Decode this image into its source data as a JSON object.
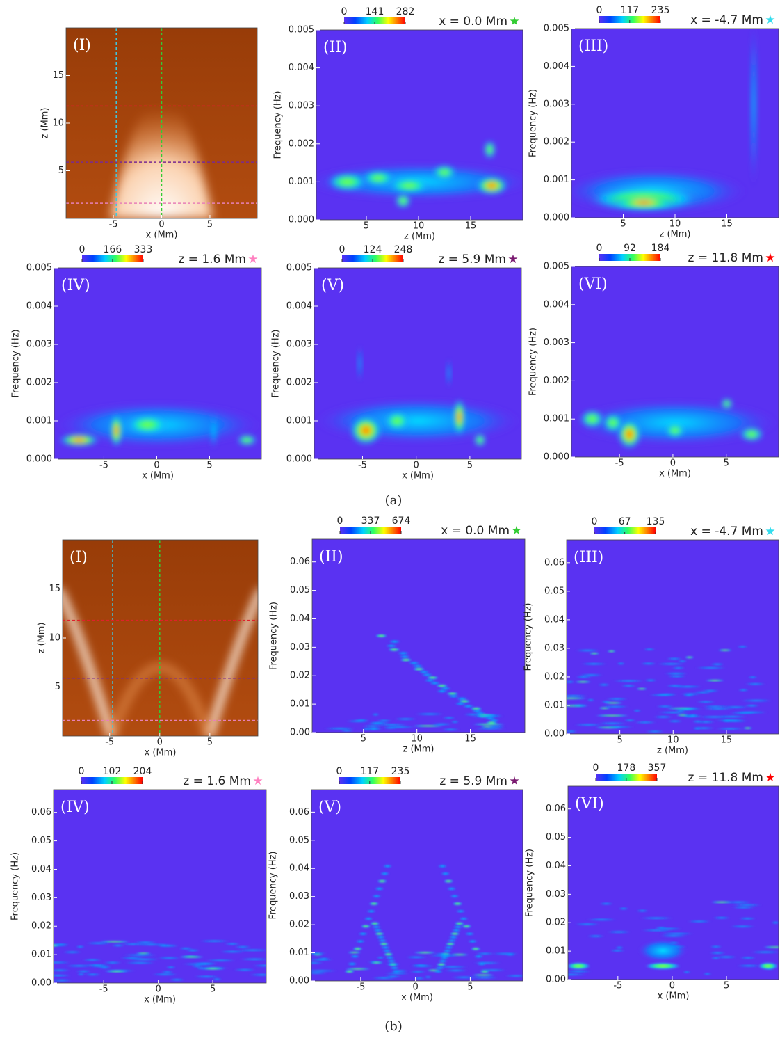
{
  "captions": [
    "(a)",
    "(b)"
  ],
  "chart_data": [
    {
      "type": "image",
      "panel": "(I)",
      "xlabel": "x (Mm)",
      "ylabel": "z (Mm)",
      "xlim": [
        -9.9,
        9.9
      ],
      "ylim": [
        0,
        20
      ],
      "xticks": [
        -5,
        0,
        5
      ],
      "yticks": [
        5,
        10,
        15
      ],
      "vlines": [
        {
          "value": -4.7,
          "color": "#3ec8e0"
        },
        {
          "value": 0,
          "color": "#33cc33"
        }
      ],
      "hlines": [
        {
          "value": 11.8,
          "color": "#e0202a"
        },
        {
          "value": 5.9,
          "color": "#7a2a90"
        },
        {
          "value": 1.6,
          "color": "#e880b8"
        }
      ]
    },
    {
      "type": "heatmap",
      "panel": "(II)",
      "title": "x = 0.0 Mm",
      "marker": "★",
      "marker_color": "#33cc33",
      "xlabel": "z (Mm)",
      "ylabel": "Frequency (Hz)",
      "xlim": [
        0.2,
        20
      ],
      "ylim": [
        0,
        0.005
      ],
      "xticks": [
        5,
        10,
        15
      ],
      "yticks": [
        {
          "value": 0,
          "label": "0.000"
        },
        {
          "value": 0.001,
          "label": "0.001"
        },
        {
          "value": 0.002,
          "label": "0.002"
        },
        {
          "value": 0.003,
          "label": "0.003"
        },
        {
          "value": 0.004,
          "label": "0.004"
        },
        {
          "value": 0.005,
          "label": "0.005"
        }
      ],
      "clim": [
        0,
        282
      ],
      "colorbar_ticks": [
        0,
        141,
        282
      ]
    },
    {
      "type": "heatmap",
      "panel": "(III)",
      "title": "x = -4.7 Mm",
      "marker": "★",
      "marker_color": "#33ddee",
      "xlabel": "z (Mm)",
      "ylabel": "Frequency (Hz)",
      "xlim": [
        0,
        20
      ],
      "ylim": [
        0,
        0.005
      ],
      "xticks": [
        5,
        10,
        15
      ],
      "yticks": [
        {
          "value": 0,
          "label": "0.000"
        },
        {
          "value": 0.001,
          "label": "0.001"
        },
        {
          "value": 0.002,
          "label": "0.002"
        },
        {
          "value": 0.003,
          "label": "0.003"
        },
        {
          "value": 0.004,
          "label": "0.004"
        },
        {
          "value": 0.005,
          "label": "0.005"
        }
      ],
      "clim": [
        0,
        235
      ],
      "colorbar_ticks": [
        0,
        117,
        235
      ]
    },
    {
      "type": "heatmap",
      "panel": "(IV)",
      "title": "z = 1.6 Mm",
      "marker": "★",
      "marker_color": "#ff80c0",
      "xlabel": "x (Mm)",
      "ylabel": "Frequency (Hz)",
      "xlim": [
        -9.7,
        9.9
      ],
      "ylim": [
        0,
        0.005
      ],
      "xticks": [
        -5,
        0,
        5
      ],
      "yticks": [
        {
          "value": 0,
          "label": "0.000"
        },
        {
          "value": 0.001,
          "label": "0.001"
        },
        {
          "value": 0.002,
          "label": "0.002"
        },
        {
          "value": 0.003,
          "label": "0.003"
        },
        {
          "value": 0.004,
          "label": "0.004"
        },
        {
          "value": 0.005,
          "label": "0.005"
        }
      ],
      "clim": [
        0,
        333
      ],
      "colorbar_ticks": [
        0,
        166,
        333
      ]
    },
    {
      "type": "heatmap",
      "panel": "(V)",
      "title": "z = 5.9 Mm",
      "marker": "★",
      "marker_color": "#7a1a70",
      "xlabel": "x (Mm)",
      "ylabel": "Frequency (Hz)",
      "xlim": [
        -9.5,
        9.8
      ],
      "ylim": [
        0,
        0.005
      ],
      "xticks": [
        -5,
        0,
        5
      ],
      "yticks": [
        {
          "value": 0,
          "label": "0.000"
        },
        {
          "value": 0.001,
          "label": "0.001"
        },
        {
          "value": 0.002,
          "label": "0.002"
        },
        {
          "value": 0.003,
          "label": "0.003"
        },
        {
          "value": 0.004,
          "label": "0.004"
        },
        {
          "value": 0.005,
          "label": "0.005"
        }
      ],
      "clim": [
        0,
        248
      ],
      "colorbar_ticks": [
        0,
        124,
        248
      ]
    },
    {
      "type": "heatmap",
      "panel": "(VI)",
      "title": "z = 11.8 Mm",
      "marker": "★",
      "marker_color": "#ff0000",
      "xlabel": "x (Mm)",
      "ylabel": "Frequency (Hz)",
      "xlim": [
        -9.5,
        9.9
      ],
      "ylim": [
        0,
        0.005
      ],
      "xticks": [
        -5,
        0,
        5
      ],
      "yticks": [
        {
          "value": 0,
          "label": "0.000"
        },
        {
          "value": 0.001,
          "label": "0.001"
        },
        {
          "value": 0.002,
          "label": "0.002"
        },
        {
          "value": 0.003,
          "label": "0.003"
        },
        {
          "value": 0.004,
          "label": "0.004"
        },
        {
          "value": 0.005,
          "label": "0.005"
        }
      ],
      "clim": [
        0,
        184
      ],
      "colorbar_ticks": [
        0,
        92,
        184
      ]
    },
    {
      "type": "image",
      "panel": "(I)",
      "xlabel": "x (Mm)",
      "ylabel": "z (Mm)",
      "xlim": [
        -9.7,
        9.8
      ],
      "ylim": [
        0,
        20
      ],
      "xticks": [
        -5,
        0,
        5
      ],
      "yticks": [
        5,
        10,
        15
      ],
      "vlines": [
        {
          "value": -4.7,
          "color": "#3ec8e0"
        },
        {
          "value": 0,
          "color": "#33cc33"
        }
      ],
      "hlines": [
        {
          "value": 11.8,
          "color": "#e0202a"
        },
        {
          "value": 5.9,
          "color": "#7a2a90"
        },
        {
          "value": 1.6,
          "color": "#e880b8"
        }
      ]
    },
    {
      "type": "heatmap",
      "panel": "(II)",
      "title": "x = 0.0 Mm",
      "marker": "★",
      "marker_color": "#33cc33",
      "xlabel": "z (Mm)",
      "ylabel": "Frequency (Hz)",
      "xlim": [
        0.2,
        20.1
      ],
      "ylim": [
        0,
        0.068
      ],
      "xticks": [
        5,
        10,
        15
      ],
      "yticks": [
        {
          "value": 0,
          "label": "0.00"
        },
        {
          "value": 0.01,
          "label": "0.01"
        },
        {
          "value": 0.02,
          "label": "0.02"
        },
        {
          "value": 0.03,
          "label": "0.03"
        },
        {
          "value": 0.04,
          "label": "0.04"
        },
        {
          "value": 0.05,
          "label": "0.05"
        },
        {
          "value": 0.06,
          "label": "0.06"
        }
      ],
      "clim": [
        0,
        674
      ],
      "colorbar_ticks": [
        0,
        337,
        674
      ]
    },
    {
      "type": "heatmap",
      "panel": "(III)",
      "title": "x = -4.7 Mm",
      "marker": "★",
      "marker_color": "#33ddee",
      "xlabel": "z (Mm)",
      "ylabel": "Frequency (Hz)",
      "xlim": [
        0,
        19.9
      ],
      "ylim": [
        0,
        0.068
      ],
      "xticks": [
        5,
        10,
        15
      ],
      "yticks": [
        {
          "value": 0,
          "label": "0.00"
        },
        {
          "value": 0.01,
          "label": "0.01"
        },
        {
          "value": 0.02,
          "label": "0.02"
        },
        {
          "value": 0.03,
          "label": "0.03"
        },
        {
          "value": 0.04,
          "label": "0.04"
        },
        {
          "value": 0.05,
          "label": "0.05"
        },
        {
          "value": 0.06,
          "label": "0.06"
        }
      ],
      "clim": [
        0,
        135
      ],
      "colorbar_ticks": [
        0,
        67,
        135
      ]
    },
    {
      "type": "heatmap",
      "panel": "(IV)",
      "title": "z = 1.6 Mm",
      "marker": "★",
      "marker_color": "#ff80c0",
      "xlabel": "x (Mm)",
      "ylabel": "Frequency (Hz)",
      "xlim": [
        -9.6,
        9.9
      ],
      "ylim": [
        0,
        0.068
      ],
      "xticks": [
        -5,
        0,
        5
      ],
      "yticks": [
        {
          "value": 0,
          "label": "0.00"
        },
        {
          "value": 0.01,
          "label": "0.01"
        },
        {
          "value": 0.02,
          "label": "0.02"
        },
        {
          "value": 0.03,
          "label": "0.03"
        },
        {
          "value": 0.04,
          "label": "0.04"
        },
        {
          "value": 0.05,
          "label": "0.05"
        },
        {
          "value": 0.06,
          "label": "0.06"
        }
      ],
      "clim": [
        0,
        204
      ],
      "colorbar_ticks": [
        0,
        102,
        204
      ]
    },
    {
      "type": "heatmap",
      "panel": "(V)",
      "title": "z = 5.9 Mm",
      "marker": "★",
      "marker_color": "#7a1a70",
      "xlabel": "x (Mm)",
      "ylabel": "Frequency (Hz)",
      "xlim": [
        -9.5,
        9.8
      ],
      "ylim": [
        0,
        0.068
      ],
      "xticks": [
        -5,
        0,
        5
      ],
      "yticks": [
        {
          "value": 0,
          "label": "0.00"
        },
        {
          "value": 0.01,
          "label": "0.01"
        },
        {
          "value": 0.02,
          "label": "0.02"
        },
        {
          "value": 0.03,
          "label": "0.03"
        },
        {
          "value": 0.04,
          "label": "0.04"
        },
        {
          "value": 0.05,
          "label": "0.05"
        },
        {
          "value": 0.06,
          "label": "0.06"
        }
      ],
      "clim": [
        0,
        235
      ],
      "colorbar_ticks": [
        0,
        117,
        235
      ]
    },
    {
      "type": "heatmap",
      "panel": "(VI)",
      "title": "z = 11.8 Mm",
      "marker": "★",
      "marker_color": "#ff0000",
      "xlabel": "x (Mm)",
      "ylabel": "Frequency (Hz)",
      "xlim": [
        -9.6,
        9.8
      ],
      "ylim": [
        0,
        0.068
      ],
      "xticks": [
        -5,
        0,
        5
      ],
      "yticks": [
        {
          "value": 0,
          "label": "0.00"
        },
        {
          "value": 0.01,
          "label": "0.01"
        },
        {
          "value": 0.02,
          "label": "0.02"
        },
        {
          "value": 0.03,
          "label": "0.03"
        },
        {
          "value": 0.04,
          "label": "0.04"
        },
        {
          "value": 0.05,
          "label": "0.05"
        },
        {
          "value": 0.06,
          "label": "0.06"
        }
      ],
      "clim": [
        0,
        357
      ],
      "colorbar_ticks": [
        0,
        178,
        357
      ]
    }
  ]
}
